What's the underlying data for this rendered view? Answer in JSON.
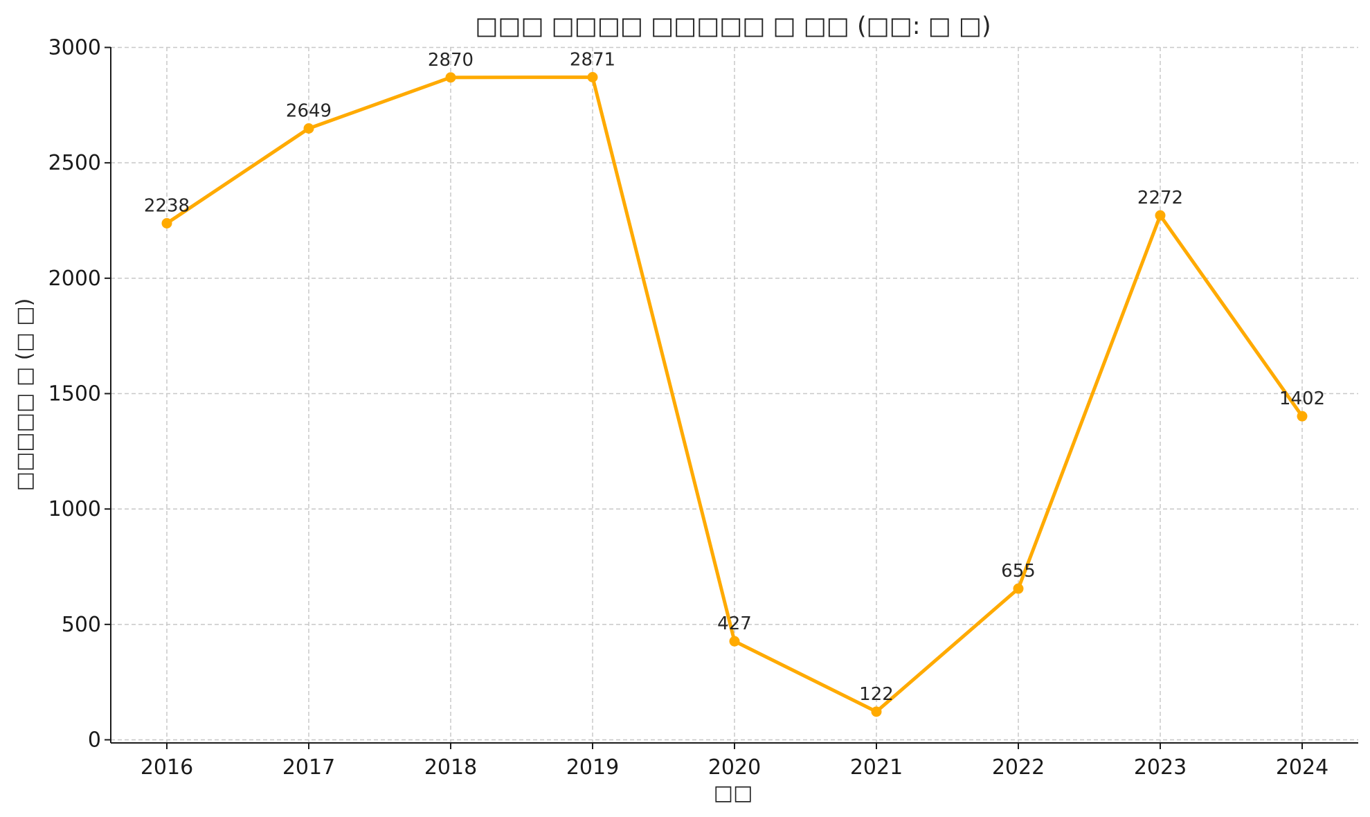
{
  "chart_data": {
    "type": "line",
    "title": "□□□ □□□□ □□□□□ □ □□ (□□: □ □)",
    "xlabel": "□□",
    "ylabel": "□□□□□ □ (□ □)",
    "ylim": [
      0,
      3000
    ],
    "yticks": [
      0,
      500,
      1000,
      1500,
      2000,
      2500,
      3000
    ],
    "grid": true,
    "line_color": "#FFAA00",
    "categories": [
      "2016",
      "2017",
      "2018",
      "2019",
      "2020",
      "2021",
      "2022",
      "2023",
      "2024"
    ],
    "series": [
      {
        "values": [
          2238,
          2649,
          2870,
          2871,
          427,
          122,
          655,
          2272,
          1402
        ]
      }
    ]
  }
}
